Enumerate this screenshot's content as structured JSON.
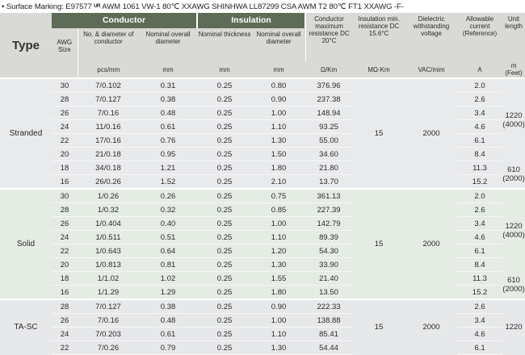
{
  "marking": {
    "label": "• Surface Marking: E97577",
    "logo": "ᵁᴿ",
    "text": "AWM 1061 VW-1 80℃ XXAWG  SHINHWA  LL87299 CSA AWM T2 80℃ FT1 XXAWG  -F-"
  },
  "header": {
    "type": "Type",
    "conductor": "Conductor",
    "insulation": "Insulation",
    "awg": "AWG Size",
    "no_diameter": "No. & diameter of conductor",
    "nominal_overall_diameter": "Nominal overall diameter",
    "nominal_thickness": "Nominal thickness",
    "nominal_overall_diameter2": "Nominal overall diameter",
    "conductor_resistance": "Conductor maximum resistance DC 20°C",
    "insulation_resistance": "Insulation min. resistance DC 15.6°C",
    "dielectric": "Dielectric withstanding voltage",
    "allowable_current": "Allowable current (Reference)",
    "unit_length": "Unit length",
    "u_pcs": "pcs/mm",
    "u_mm1": "mm",
    "u_mm2": "mm",
    "u_mm3": "mm",
    "u_ohm": "Ω/Km",
    "u_mohm": "MΩ-Km",
    "u_vac": "VAC/mim",
    "u_a": "A",
    "u_m": "m (Feet)"
  },
  "groups": [
    {
      "type": "Stranded",
      "insulation_resistance": "15",
      "dielectric": "2000",
      "rows": [
        {
          "awg": "30",
          "cond": "7/0.102",
          "od": "0.31",
          "thick": "0.25",
          "iod": "0.80",
          "res": "376.96",
          "amp": "2.0"
        },
        {
          "awg": "28",
          "cond": "7/0.127",
          "od": "0.38",
          "thick": "0.25",
          "iod": "0.90",
          "res": "237.38",
          "amp": "2.6"
        },
        {
          "awg": "26",
          "cond": "7/0.16",
          "od": "0.48",
          "thick": "0.25",
          "iod": "1.00",
          "res": "148.94",
          "amp": "3.4"
        },
        {
          "awg": "24",
          "cond": "11/0.16",
          "od": "0.61",
          "thick": "0.25",
          "iod": "1.10",
          "res": "93.25",
          "amp": "4.6"
        },
        {
          "awg": "22",
          "cond": "17/0.16",
          "od": "0.76",
          "thick": "0.25",
          "iod": "1.30",
          "res": "55.00",
          "amp": "6.1"
        },
        {
          "awg": "20",
          "cond": "21/0.18",
          "od": "0.95",
          "thick": "0.25",
          "iod": "1.50",
          "res": "34.60",
          "amp": "8.4"
        },
        {
          "awg": "18",
          "cond": "34/0.18",
          "od": "1.21",
          "thick": "0.25",
          "iod": "1.80",
          "res": "21.80",
          "amp": "11.3"
        },
        {
          "awg": "16",
          "cond": "26/0.26",
          "od": "1.52",
          "thick": "0.25",
          "iod": "2.10",
          "res": "13.70",
          "amp": "15.2"
        }
      ],
      "length_a": "1220 (4000)",
      "length_b": "610 (2000)"
    },
    {
      "type": "Solid",
      "insulation_resistance": "15",
      "dielectric": "2000",
      "rows": [
        {
          "awg": "30",
          "cond": "1/0.26",
          "od": "0.26",
          "thick": "0.25",
          "iod": "0.75",
          "res": "361.13",
          "amp": "2.0"
        },
        {
          "awg": "28",
          "cond": "1/0.32",
          "od": "0.32",
          "thick": "0.25",
          "iod": "0.85",
          "res": "227.39",
          "amp": "2.6"
        },
        {
          "awg": "26",
          "cond": "1/0.404",
          "od": "0.40",
          "thick": "0.25",
          "iod": "1.00",
          "res": "142.79",
          "amp": "3.4"
        },
        {
          "awg": "24",
          "cond": "1/0.511",
          "od": "0.51",
          "thick": "0.25",
          "iod": "1.10",
          "res": "89.39",
          "amp": "4.6"
        },
        {
          "awg": "22",
          "cond": "1/0.643",
          "od": "0.64",
          "thick": "0.25",
          "iod": "1.20",
          "res": "54.30",
          "amp": "6.1"
        },
        {
          "awg": "20",
          "cond": "1/0.813",
          "od": "0.81",
          "thick": "0.25",
          "iod": "1.30",
          "res": "33.90",
          "amp": "8.4"
        },
        {
          "awg": "18",
          "cond": "1/1.02",
          "od": "1.02",
          "thick": "0.25",
          "iod": "1.55",
          "res": "21.40",
          "amp": "11.3"
        },
        {
          "awg": "16",
          "cond": "1/1.29",
          "od": "1.29",
          "thick": "0.25",
          "iod": "1.80",
          "res": "13.50",
          "amp": "15.2"
        }
      ],
      "length_a": "1220 (4000)",
      "length_b": "610 (2000)"
    },
    {
      "type": "TA-SC",
      "insulation_resistance": "15",
      "dielectric": "2000",
      "rows": [
        {
          "awg": "28",
          "cond": "7/0.127",
          "od": "0.38",
          "thick": "0.25",
          "iod": "0.90",
          "res": "222.33",
          "amp": "2.6"
        },
        {
          "awg": "26",
          "cond": "7/0.16",
          "od": "0.48",
          "thick": "0.25",
          "iod": "1.00",
          "res": "138.88",
          "amp": "3.4"
        },
        {
          "awg": "24",
          "cond": "7/0.203",
          "od": "0.61",
          "thick": "0.25",
          "iod": "1.10",
          "res": "85.41",
          "amp": "4.6"
        },
        {
          "awg": "22",
          "cond": "7/0.26",
          "od": "0.79",
          "thick": "0.25",
          "iod": "1.30",
          "res": "54.44",
          "amp": "6.1"
        }
      ],
      "length_a": "1220"
    }
  ]
}
